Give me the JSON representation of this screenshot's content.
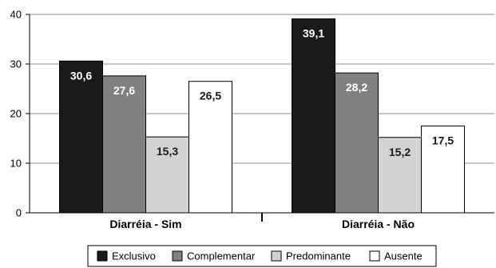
{
  "chart_data": {
    "type": "bar",
    "categories": [
      "Diarréia - Sim",
      "Diarréia - Não"
    ],
    "series": [
      {
        "name": "Exclusivo",
        "values": [
          30.6,
          39.1
        ],
        "labels": [
          "30,6",
          "39,1"
        ],
        "color": "#1a1a1a",
        "label_color": "#ffffff"
      },
      {
        "name": "Complementar",
        "values": [
          27.6,
          28.2
        ],
        "labels": [
          "27,6",
          "28,2"
        ],
        "color": "#808080",
        "label_color": "#ffffff"
      },
      {
        "name": "Predominante",
        "values": [
          15.3,
          15.2
        ],
        "labels": [
          "15,3",
          "15,2"
        ],
        "color": "#d3d3d3",
        "label_color": "#1a1a1a"
      },
      {
        "name": "Ausente",
        "values": [
          26.5,
          17.5
        ],
        "labels": [
          "26,5",
          "17,5"
        ],
        "color": "#ffffff",
        "label_color": "#1a1a1a"
      }
    ],
    "yticks": [
      "0",
      "10",
      "20",
      "30",
      "40"
    ],
    "ylim": [
      0,
      40
    ],
    "grid": true,
    "legend_position": "bottom"
  }
}
